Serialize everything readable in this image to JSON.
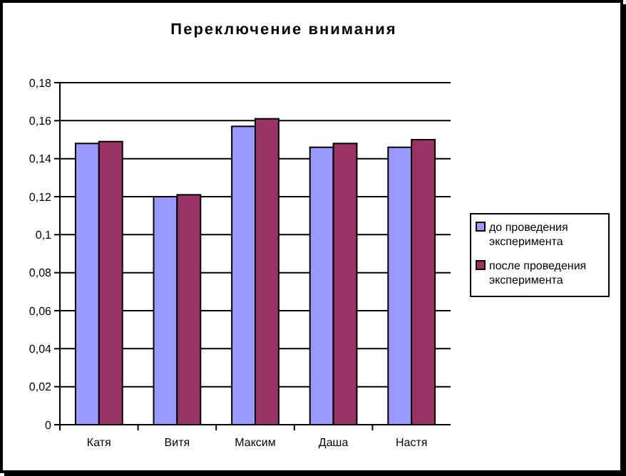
{
  "chart_data": {
    "type": "bar",
    "title": "Переключение внимания",
    "categories": [
      "Катя",
      "Витя",
      "Максим",
      "Даша",
      "Настя"
    ],
    "series": [
      {
        "name": "до проведения эксперимента",
        "color": "#9999ff",
        "values": [
          0.148,
          0.12,
          0.157,
          0.146,
          0.146
        ]
      },
      {
        "name": "после проведения эксперимента",
        "color": "#993366",
        "values": [
          0.149,
          0.121,
          0.161,
          0.148,
          0.15
        ]
      }
    ],
    "ylim": [
      0,
      0.18
    ],
    "yticks": [
      {
        "value": 0,
        "label": "0"
      },
      {
        "value": 0.02,
        "label": "0,02"
      },
      {
        "value": 0.04,
        "label": "0,04"
      },
      {
        "value": 0.06,
        "label": "0,06"
      },
      {
        "value": 0.08,
        "label": "0,08"
      },
      {
        "value": 0.1,
        "label": "0,1"
      },
      {
        "value": 0.12,
        "label": "0,12"
      },
      {
        "value": 0.14,
        "label": "0,14"
      },
      {
        "value": 0.16,
        "label": "0,16"
      },
      {
        "value": 0.18,
        "label": "0,18"
      }
    ],
    "grid": "y",
    "legend": "right"
  }
}
